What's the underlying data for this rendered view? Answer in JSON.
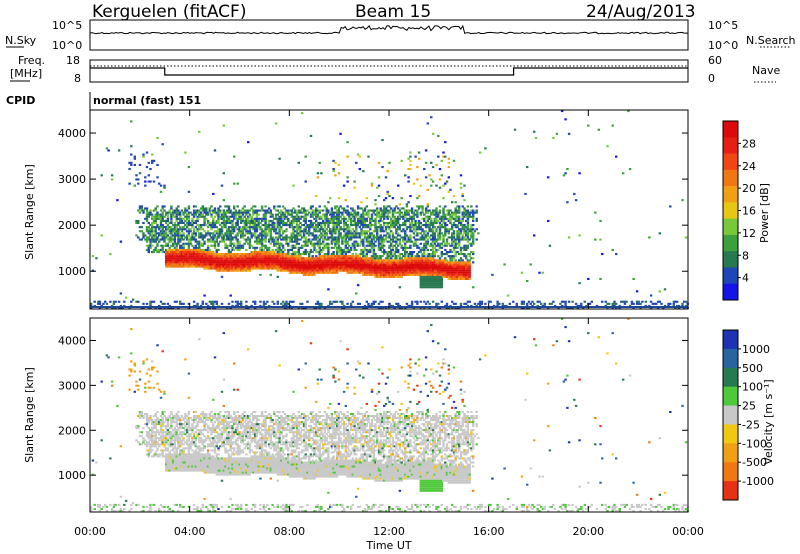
{
  "header": {
    "station": "Kerguelen (fitACF)",
    "beam": "Beam 15",
    "date": "24/Aug/2013"
  },
  "noise_panel": {
    "left_label": "N.Sky",
    "right_label": "N.Search",
    "left_ticks": [
      "10^5",
      "10^0"
    ],
    "right_ticks": [
      "10^5",
      "10^0"
    ]
  },
  "freq_panel": {
    "left_label_1": "Freq.",
    "left_label_2": "[MHz]",
    "right_label": "Nave",
    "left_ticks": [
      "18",
      "8"
    ],
    "right_ticks": [
      "60",
      "0"
    ]
  },
  "cpid": {
    "label": "CPID",
    "text": "normal (fast) 151"
  },
  "axes": {
    "ylabel": "Slant Range [km]",
    "xlabel": "Time UT",
    "yticks": [
      "1000",
      "2000",
      "3000",
      "4000"
    ],
    "xticks": [
      "00:00",
      "04:00",
      "08:00",
      "12:00",
      "16:00",
      "20:00",
      "00:00"
    ]
  },
  "chart_data": [
    {
      "type": "heatmap",
      "title": "",
      "xlabel": "Time UT",
      "ylabel": "Slant Range [km]",
      "x_range_hours": [
        0,
        24
      ],
      "y_range_km": [
        180,
        4500
      ],
      "colorbar": {
        "label": "Power [dB]",
        "ticks": [
          "4",
          "8",
          "12",
          "16",
          "20",
          "24",
          "28"
        ],
        "colors": [
          "#1414e6",
          "#1e46b4",
          "#287850",
          "#3ca03c",
          "#78c83c",
          "#e6c814",
          "#f0a014",
          "#f07814",
          "#f04614",
          "#e61e14",
          "#dc0a0a"
        ]
      },
      "features": [
        {
          "name": "ground scatter band",
          "time_h": [
            3.0,
            15.5
          ],
          "range_km": [
            900,
            1400
          ],
          "typical_db": 24
        },
        {
          "name": "ionospheric patches",
          "time_h": [
            2.0,
            15.5
          ],
          "range_km": [
            1400,
            2400
          ],
          "typical_db": 12
        },
        {
          "name": "near-range clutter",
          "time_h": [
            0,
            24
          ],
          "range_km": [
            180,
            350
          ],
          "typical_db": 8
        }
      ]
    },
    {
      "type": "heatmap",
      "title": "",
      "xlabel": "Time UT",
      "ylabel": "Slant Range [km]",
      "x_range_hours": [
        0,
        24
      ],
      "y_range_km": [
        180,
        4500
      ],
      "colorbar": {
        "label": "Velocity [m s⁻¹]",
        "ticks": [
          "1000",
          "500",
          "100",
          "25",
          "-25",
          "-100",
          "-500",
          "-1000"
        ],
        "colors": [
          "#1e32b4",
          "#2864a0",
          "#287850",
          "#50c83c",
          "#c8c8c8",
          "#f0c814",
          "#f0a014",
          "#f07814",
          "#e63214"
        ]
      },
      "features": [
        {
          "name": "ground scatter (grey, low velocity)",
          "time_h": [
            2.0,
            15.5
          ],
          "range_km": [
            900,
            2400
          ],
          "typical_ms": 0
        },
        {
          "name": "positive velocity patch",
          "time_h": [
            13.0,
            14.0
          ],
          "range_km": [
            650,
            900
          ],
          "typical_ms": 150
        }
      ]
    }
  ]
}
